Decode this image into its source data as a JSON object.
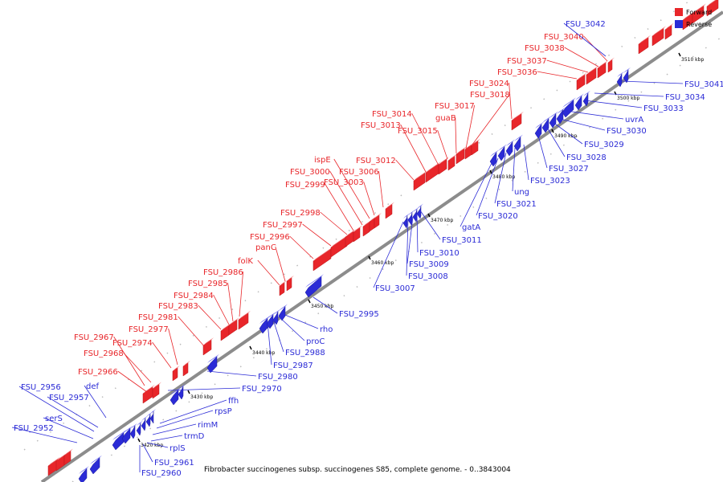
{
  "caption": "Fibrobacter succinogenes subsp. succinogenes S85, complete genome. - 0..3843004",
  "legend": [
    {
      "label": "Forward",
      "color": "#e8262a"
    },
    {
      "label": "Reverse",
      "color": "#2b2bd6"
    }
  ],
  "colors": {
    "forward": "#e8262a",
    "reverse": "#2b2bd6",
    "backbone": "#8c8c8c"
  },
  "ticks": [
    "3420 kbp",
    "3430 kbp",
    "3440 kbp",
    "3450 kbp",
    "3460 kbp",
    "3470 kbp",
    "3480 kbp",
    "3490 kbp",
    "3500 kbp",
    "3510 kbp"
  ],
  "forward_labels": [
    "FSU_2966",
    "FSU_2967",
    "FSU_2968",
    "FSU_2974",
    "FSU_2977",
    "FSU_2981",
    "FSU_2983",
    "FSU_2984",
    "FSU_2985",
    "FSU_2986",
    "folK",
    "panC",
    "FSU_2996",
    "FSU_2997",
    "FSU_2998",
    "FSU_2999",
    "FSU_3000",
    "ispE",
    "FSU_3003",
    "FSU_3006",
    "FSU_3012",
    "FSU_3013",
    "FSU_3014",
    "FSU_3015",
    "guaB",
    "FSU_3017",
    "FSU_3018",
    "FSU_3024",
    "FSU_3036",
    "FSU_3037",
    "FSU_3038",
    "FSU_3040"
  ],
  "reverse_labels": [
    "FSU_2952",
    "serS",
    "FSU_2956",
    "FSU_2957",
    "def",
    "FSU_2960",
    "FSU_2961",
    "rplS",
    "trmD",
    "rimM",
    "rpsP",
    "ffh",
    "FSU_2970",
    "FSU_2980",
    "FSU_2987",
    "FSU_2988",
    "proC",
    "rho",
    "FSU_2995",
    "FSU_3007",
    "FSU_3008",
    "FSU_3009",
    "FSU_3010",
    "FSU_3011",
    "gatA",
    "FSU_3020",
    "FSU_3021",
    "ung",
    "FSU_3023",
    "FSU_3027",
    "FSU_3028",
    "FSU_3029",
    "FSU_3030",
    "uvrA",
    "FSU_3033",
    "FSU_3034",
    "FSU_3041",
    "FSU_3042"
  ]
}
